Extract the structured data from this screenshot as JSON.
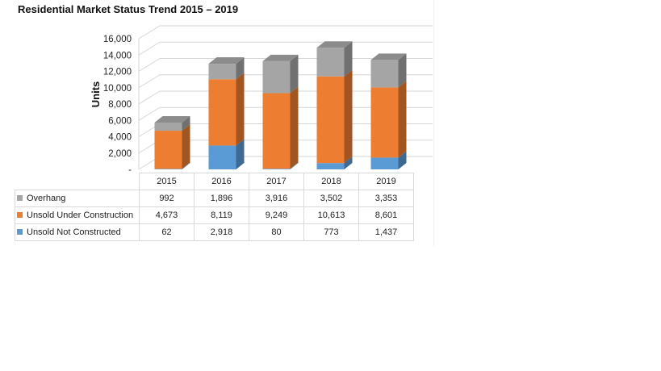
{
  "chart_data": {
    "type": "bar",
    "stacked": true,
    "three_d": true,
    "title": "Residential Market Status Trend 2015 – 2019",
    "xlabel": "",
    "ylabel": "Units",
    "ylim": [
      0,
      16000
    ],
    "yticks": [
      "-",
      "2,000",
      "4,000",
      "6,000",
      "8,000",
      "10,000",
      "12,000",
      "14,000",
      "16,000"
    ],
    "grid": true,
    "legend": "data-table",
    "categories": [
      "2015",
      "2016",
      "2017",
      "2018",
      "2019"
    ],
    "series": [
      {
        "name": "Overhang",
        "color": "#a5a5a5",
        "values": [
          992,
          1896,
          3916,
          3502,
          3353
        ],
        "labels": [
          "992",
          "1,896",
          "3,916",
          "3,502",
          "3,353"
        ]
      },
      {
        "name": "Unsold Under Construction",
        "color": "#ed7d31",
        "values": [
          4673,
          8119,
          9249,
          10613,
          8601
        ],
        "labels": [
          "4,673",
          "8,119",
          "9,249",
          "10,613",
          "8,601"
        ]
      },
      {
        "name": "Unsold Not Constructed",
        "color": "#5b9bd5",
        "values": [
          62,
          2918,
          80,
          773,
          1437
        ],
        "labels": [
          "62",
          "2,918",
          "80",
          "773",
          "1,437"
        ]
      }
    ]
  }
}
